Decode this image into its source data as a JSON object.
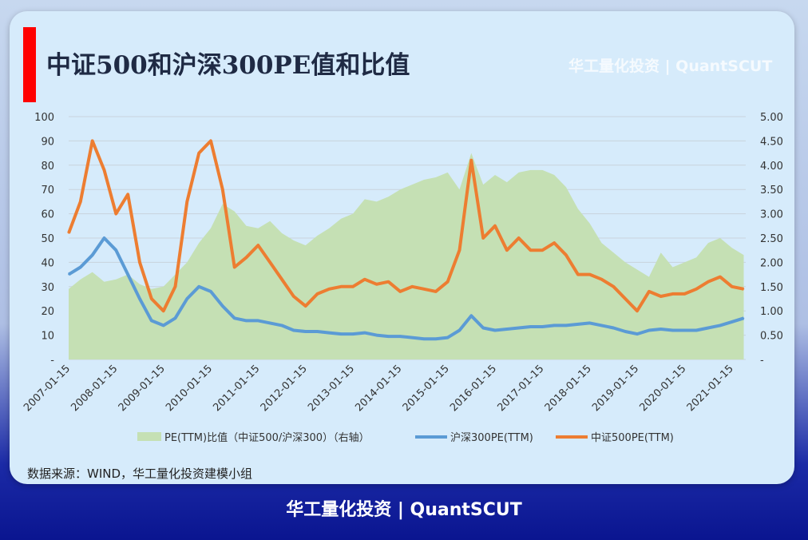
{
  "header": {
    "title": "中证500和沪深300PE值和比值",
    "watermark": "华工量化投资 | QuantSCUT"
  },
  "source": "数据来源：WIND，华工量化投资建模小组",
  "footer": "华工量化投资 | QuantSCUT",
  "colors": {
    "ratio_fill": "#c5e0b4",
    "csi300": "#5b9bd5",
    "csi500": "#ed7d31",
    "accent": "#ff0000"
  },
  "chart_data": {
    "type": "line",
    "title": "中证500和沪深300PE值和比值",
    "x_tick_labels": [
      "2007-01-15",
      "2008-01-15",
      "2009-01-15",
      "2010-01-15",
      "2011-01-15",
      "2012-01-15",
      "2013-01-15",
      "2014-01-15",
      "2015-01-15",
      "2016-01-15",
      "2017-01-15",
      "2018-01-15",
      "2019-01-15",
      "2020-01-15",
      "2021-01-15"
    ],
    "y_left": {
      "ticks": [
        "100",
        "90",
        "80",
        "70",
        "60",
        "50",
        "40",
        "30",
        "20",
        "10",
        "-"
      ],
      "range": [
        0,
        100
      ]
    },
    "y_right": {
      "ticks": [
        "5.00",
        "4.50",
        "4.00",
        "3.50",
        "3.00",
        "2.50",
        "2.00",
        "1.50",
        "1.00",
        "0.50",
        "-"
      ],
      "range": [
        0,
        5
      ]
    },
    "grid": true,
    "legend_position": "bottom",
    "series": [
      {
        "name": "PE(TTM)比值（中证500/沪深300）（右轴）",
        "type": "area",
        "axis": "right",
        "color": "#c5e0b4",
        "x": [
          "2007-01",
          "2007-04",
          "2007-07",
          "2007-10",
          "2008-01",
          "2008-04",
          "2008-07",
          "2008-10",
          "2009-01",
          "2009-04",
          "2009-07",
          "2009-10",
          "2010-01",
          "2010-04",
          "2010-07",
          "2010-10",
          "2011-01",
          "2011-04",
          "2011-07",
          "2011-10",
          "2012-01",
          "2012-04",
          "2012-07",
          "2012-10",
          "2013-01",
          "2013-04",
          "2013-07",
          "2013-10",
          "2014-01",
          "2014-04",
          "2014-07",
          "2014-10",
          "2015-01",
          "2015-04",
          "2015-07",
          "2015-10",
          "2016-01",
          "2016-04",
          "2016-07",
          "2016-10",
          "2017-01",
          "2017-04",
          "2017-07",
          "2017-10",
          "2018-01",
          "2018-04",
          "2018-07",
          "2018-10",
          "2019-01",
          "2019-04",
          "2019-07",
          "2019-10",
          "2020-01",
          "2020-04",
          "2020-07",
          "2020-10",
          "2021-01",
          "2021-04"
        ],
        "values": [
          1.45,
          1.65,
          1.8,
          1.6,
          1.65,
          1.75,
          1.55,
          1.45,
          1.5,
          1.75,
          2.0,
          2.4,
          2.7,
          3.2,
          3.05,
          2.75,
          2.7,
          2.85,
          2.6,
          2.45,
          2.35,
          2.55,
          2.7,
          2.9,
          3.0,
          3.3,
          3.25,
          3.35,
          3.5,
          3.6,
          3.7,
          3.75,
          3.85,
          3.5,
          4.25,
          3.6,
          3.8,
          3.65,
          3.85,
          3.9,
          3.9,
          3.8,
          3.55,
          3.1,
          2.8,
          2.4,
          2.2,
          2.0,
          1.85,
          1.7,
          2.2,
          1.9,
          2.0,
          2.1,
          2.4,
          2.5,
          2.3,
          2.15
        ]
      },
      {
        "name": "沪深300PE(TTM)",
        "type": "line",
        "axis": "left",
        "color": "#5b9bd5",
        "x": [
          "2007-01",
          "2007-04",
          "2007-07",
          "2007-10",
          "2008-01",
          "2008-04",
          "2008-07",
          "2008-10",
          "2009-01",
          "2009-04",
          "2009-07",
          "2009-10",
          "2010-01",
          "2010-04",
          "2010-07",
          "2010-10",
          "2011-01",
          "2011-04",
          "2011-07",
          "2011-10",
          "2012-01",
          "2012-04",
          "2012-07",
          "2012-10",
          "2013-01",
          "2013-04",
          "2013-07",
          "2013-10",
          "2014-01",
          "2014-04",
          "2014-07",
          "2014-10",
          "2015-01",
          "2015-04",
          "2015-07",
          "2015-10",
          "2016-01",
          "2016-04",
          "2016-07",
          "2016-10",
          "2017-01",
          "2017-04",
          "2017-07",
          "2017-10",
          "2018-01",
          "2018-04",
          "2018-07",
          "2018-10",
          "2019-01",
          "2019-04",
          "2019-07",
          "2019-10",
          "2020-01",
          "2020-04",
          "2020-07",
          "2020-10",
          "2021-01",
          "2021-04"
        ],
        "values": [
          35,
          38,
          43,
          50,
          45,
          35,
          25,
          16,
          14,
          17,
          25,
          30,
          28,
          22,
          17,
          16,
          16,
          15,
          14,
          12,
          11.5,
          11.5,
          11,
          10.5,
          10.5,
          11,
          10,
          9.5,
          9.5,
          9,
          8.5,
          8.5,
          9,
          12,
          18,
          13,
          12,
          12.5,
          13,
          13.5,
          13.5,
          14,
          14,
          14.5,
          15,
          14,
          13,
          11.5,
          10.5,
          12,
          12.5,
          12,
          12,
          12,
          13,
          14,
          15.5,
          17
        ]
      },
      {
        "name": "中证500PE(TTM)",
        "type": "line",
        "axis": "left",
        "color": "#ed7d31",
        "x": [
          "2007-01",
          "2007-04",
          "2007-07",
          "2007-10",
          "2008-01",
          "2008-04",
          "2008-07",
          "2008-10",
          "2009-01",
          "2009-04",
          "2009-07",
          "2009-10",
          "2010-01",
          "2010-04",
          "2010-07",
          "2010-10",
          "2011-01",
          "2011-04",
          "2011-07",
          "2011-10",
          "2012-01",
          "2012-04",
          "2012-07",
          "2012-10",
          "2013-01",
          "2013-04",
          "2013-07",
          "2013-10",
          "2014-01",
          "2014-04",
          "2014-07",
          "2014-10",
          "2015-01",
          "2015-04",
          "2015-07",
          "2015-10",
          "2016-01",
          "2016-04",
          "2016-07",
          "2016-10",
          "2017-01",
          "2017-04",
          "2017-07",
          "2017-10",
          "2018-01",
          "2018-04",
          "2018-07",
          "2018-10",
          "2019-01",
          "2019-04",
          "2019-07",
          "2019-10",
          "2020-01",
          "2020-04",
          "2020-07",
          "2020-10",
          "2021-01",
          "2021-04"
        ],
        "values": [
          52,
          65,
          90,
          78,
          60,
          68,
          40,
          25,
          20,
          30,
          65,
          85,
          90,
          70,
          38,
          42,
          47,
          40,
          33,
          26,
          22,
          27,
          29,
          30,
          30,
          33,
          31,
          32,
          28,
          30,
          29,
          28,
          32,
          45,
          82,
          50,
          55,
          45,
          50,
          45,
          45,
          48,
          43,
          35,
          35,
          33,
          30,
          25,
          20,
          28,
          26,
          27,
          27,
          29,
          32,
          34,
          30,
          29
        ]
      }
    ]
  }
}
